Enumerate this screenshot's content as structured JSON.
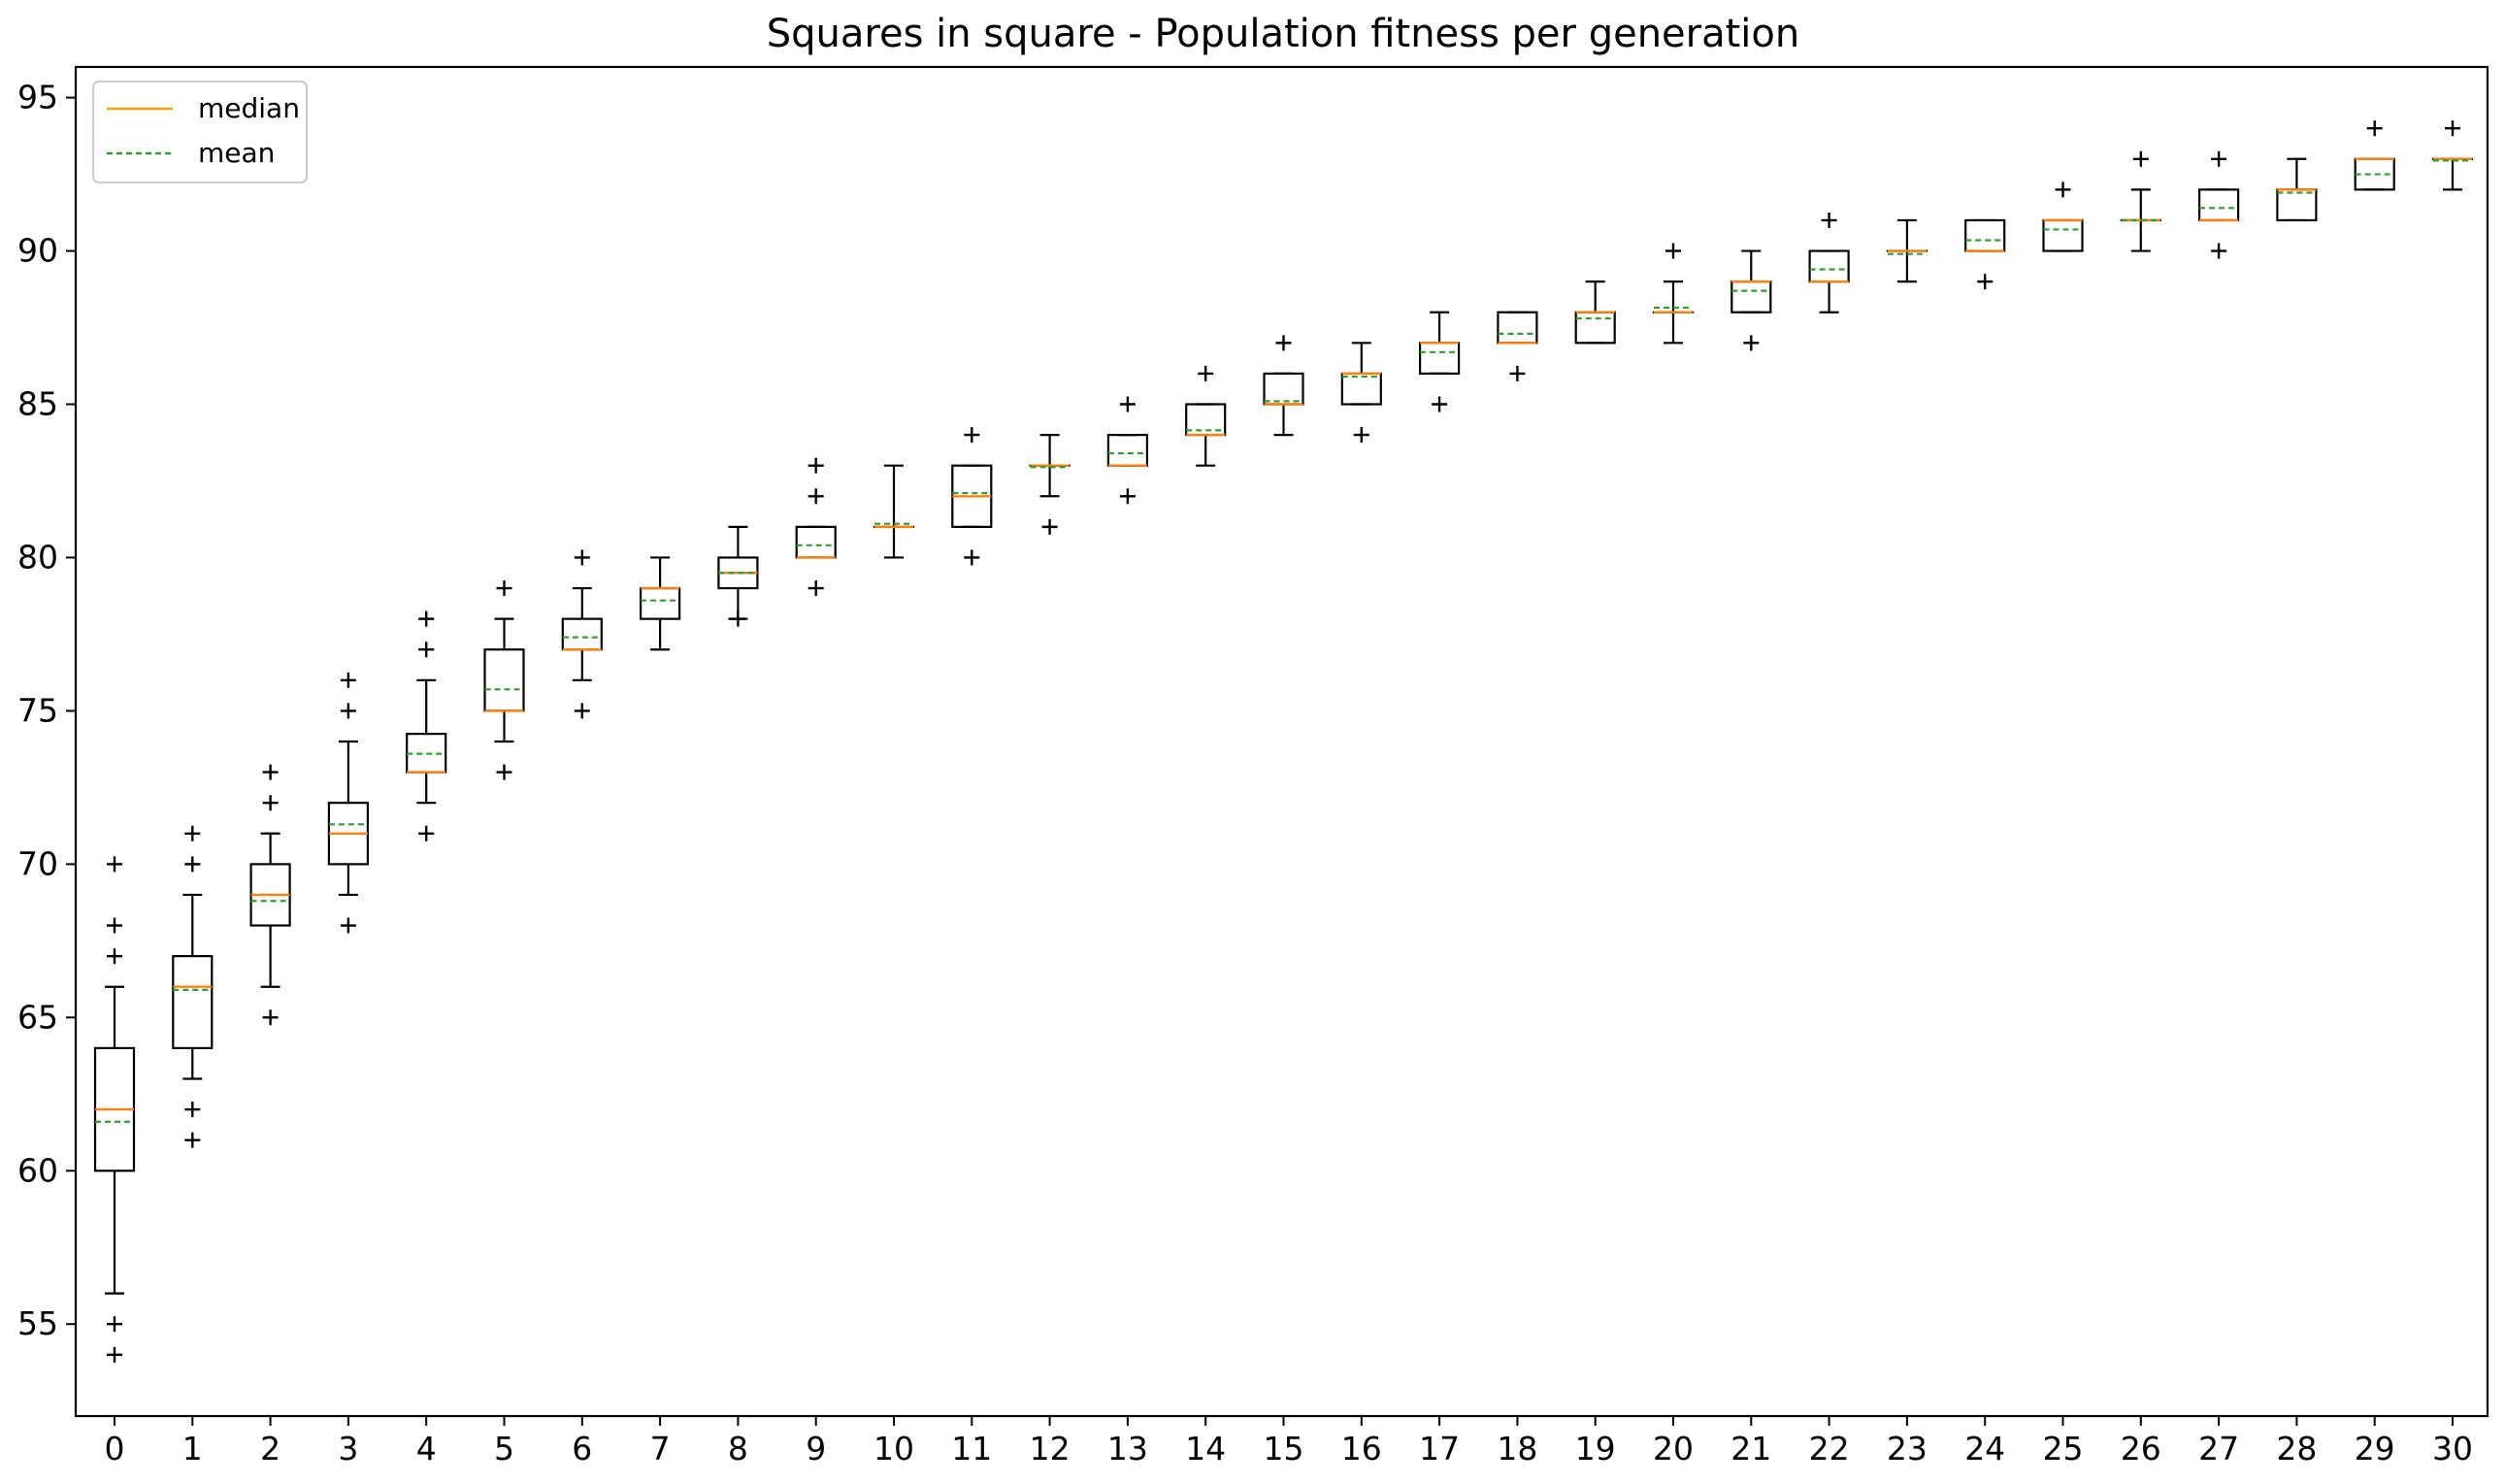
{
  "chart_data": {
    "type": "box",
    "title": "Squares in square - Population fitness per generation",
    "xlabel": "",
    "ylabel": "",
    "ylim": [
      52,
      96
    ],
    "y_ticks": [
      55,
      60,
      65,
      70,
      75,
      80,
      85,
      90,
      95
    ],
    "grid": false,
    "legend": {
      "placement": "top-left",
      "entries": [
        {
          "label": "median",
          "color": "#ff9f0e",
          "style": "solid"
        },
        {
          "label": "mean",
          "color": "#2ca02c",
          "style": "dashed"
        }
      ]
    },
    "colors": {
      "box": "#000000",
      "median": "#ff7f0e",
      "mean": "#2ca02c",
      "outlier": "#000000"
    },
    "outlier_marker": "+",
    "categories": [
      "0",
      "1",
      "2",
      "3",
      "4",
      "5",
      "6",
      "7",
      "8",
      "9",
      "10",
      "11",
      "12",
      "13",
      "14",
      "15",
      "16",
      "17",
      "18",
      "19",
      "20",
      "21",
      "22",
      "23",
      "24",
      "25",
      "26",
      "27",
      "28",
      "29",
      "30"
    ],
    "boxes": [
      {
        "gen": "0",
        "whislo": 56,
        "q1": 60,
        "med": 62,
        "q3": 64,
        "whishi": 66,
        "mean": 61.6,
        "fliers": [
          54,
          55,
          67,
          68,
          70
        ]
      },
      {
        "gen": "1",
        "whislo": 63,
        "q1": 64,
        "med": 66,
        "q3": 67,
        "whishi": 69,
        "mean": 65.9,
        "fliers": [
          61,
          62,
          70,
          71
        ]
      },
      {
        "gen": "2",
        "whislo": 66,
        "q1": 68,
        "med": 69,
        "q3": 70,
        "whishi": 71,
        "mean": 68.8,
        "fliers": [
          65,
          72,
          73
        ]
      },
      {
        "gen": "3",
        "whislo": 69,
        "q1": 70,
        "med": 71,
        "q3": 72,
        "whishi": 74,
        "mean": 71.3,
        "fliers": [
          68,
          75,
          76
        ]
      },
      {
        "gen": "4",
        "whislo": 72,
        "q1": 73,
        "med": 73,
        "q3": 74.25,
        "whishi": 76,
        "mean": 73.6,
        "fliers": [
          71,
          77,
          78
        ]
      },
      {
        "gen": "5",
        "whislo": 74,
        "q1": 75,
        "med": 75,
        "q3": 77,
        "whishi": 78,
        "mean": 75.7,
        "fliers": [
          73,
          79
        ]
      },
      {
        "gen": "6",
        "whislo": 76,
        "q1": 77,
        "med": 77,
        "q3": 78,
        "whishi": 79,
        "mean": 77.4,
        "fliers": [
          75,
          80
        ]
      },
      {
        "gen": "7",
        "whislo": 77,
        "q1": 78,
        "med": 79,
        "q3": 79,
        "whishi": 80,
        "mean": 78.6,
        "fliers": []
      },
      {
        "gen": "8",
        "whislo": 78,
        "q1": 79,
        "med": 79.5,
        "q3": 80,
        "whishi": 81,
        "mean": 79.5,
        "fliers": [
          78
        ]
      },
      {
        "gen": "9",
        "whislo": 80,
        "q1": 80,
        "med": 80,
        "q3": 81,
        "whishi": 81,
        "mean": 80.4,
        "fliers": [
          79,
          82,
          83
        ]
      },
      {
        "gen": "10",
        "whislo": 80,
        "q1": 81,
        "med": 81,
        "q3": 81,
        "whishi": 83,
        "mean": 81.1,
        "fliers": []
      },
      {
        "gen": "11",
        "whislo": 81,
        "q1": 81,
        "med": 82,
        "q3": 83,
        "whishi": 83,
        "mean": 82.1,
        "fliers": [
          80,
          84
        ]
      },
      {
        "gen": "12",
        "whislo": 82,
        "q1": 83,
        "med": 83,
        "q3": 83,
        "whishi": 84,
        "mean": 82.95,
        "fliers": [
          81
        ]
      },
      {
        "gen": "13",
        "whislo": 83,
        "q1": 83,
        "med": 83,
        "q3": 84,
        "whishi": 84,
        "mean": 83.4,
        "fliers": [
          82,
          85
        ]
      },
      {
        "gen": "14",
        "whislo": 83,
        "q1": 84,
        "med": 84,
        "q3": 85,
        "whishi": 85,
        "mean": 84.15,
        "fliers": [
          86
        ]
      },
      {
        "gen": "15",
        "whislo": 84,
        "q1": 85,
        "med": 85,
        "q3": 86,
        "whishi": 86,
        "mean": 85.1,
        "fliers": [
          87
        ]
      },
      {
        "gen": "16",
        "whislo": 85,
        "q1": 85,
        "med": 86,
        "q3": 86,
        "whishi": 87,
        "mean": 85.9,
        "fliers": [
          84
        ]
      },
      {
        "gen": "17",
        "whislo": 86,
        "q1": 86,
        "med": 87,
        "q3": 87,
        "whishi": 88,
        "mean": 86.7,
        "fliers": [
          85
        ]
      },
      {
        "gen": "18",
        "whislo": 87,
        "q1": 87,
        "med": 87,
        "q3": 88,
        "whishi": 88,
        "mean": 87.3,
        "fliers": [
          86
        ]
      },
      {
        "gen": "19",
        "whislo": 87,
        "q1": 87,
        "med": 88,
        "q3": 88,
        "whishi": 89,
        "mean": 87.8,
        "fliers": []
      },
      {
        "gen": "20",
        "whislo": 87,
        "q1": 88,
        "med": 88,
        "q3": 88,
        "whishi": 89,
        "mean": 88.15,
        "fliers": [
          90
        ]
      },
      {
        "gen": "21",
        "whislo": 88,
        "q1": 88,
        "med": 89,
        "q3": 89,
        "whishi": 90,
        "mean": 88.7,
        "fliers": [
          87
        ]
      },
      {
        "gen": "22",
        "whislo": 88,
        "q1": 89,
        "med": 89,
        "q3": 90,
        "whishi": 90,
        "mean": 89.4,
        "fliers": [
          91
        ]
      },
      {
        "gen": "23",
        "whislo": 89,
        "q1": 90,
        "med": 90,
        "q3": 90,
        "whishi": 91,
        "mean": 89.9,
        "fliers": []
      },
      {
        "gen": "24",
        "whislo": 90,
        "q1": 90,
        "med": 90,
        "q3": 91,
        "whishi": 91,
        "mean": 90.35,
        "fliers": [
          89
        ]
      },
      {
        "gen": "25",
        "whislo": 90,
        "q1": 90,
        "med": 91,
        "q3": 91,
        "whishi": 91,
        "mean": 90.7,
        "fliers": [
          92
        ]
      },
      {
        "gen": "26",
        "whislo": 90,
        "q1": 91,
        "med": 91,
        "q3": 91,
        "whishi": 92,
        "mean": 91.0,
        "fliers": [
          93
        ]
      },
      {
        "gen": "27",
        "whislo": 91,
        "q1": 91,
        "med": 91,
        "q3": 92,
        "whishi": 92,
        "mean": 91.4,
        "fliers": [
          90,
          93
        ]
      },
      {
        "gen": "28",
        "whislo": 91,
        "q1": 91,
        "med": 92,
        "q3": 92,
        "whishi": 93,
        "mean": 91.9,
        "fliers": []
      },
      {
        "gen": "29",
        "whislo": 92,
        "q1": 92,
        "med": 93,
        "q3": 93,
        "whishi": 93,
        "mean": 92.5,
        "fliers": [
          94
        ]
      },
      {
        "gen": "30",
        "whislo": 92,
        "q1": 93,
        "med": 93,
        "q3": 93,
        "whishi": 93,
        "mean": 92.95,
        "fliers": [
          94
        ]
      }
    ]
  }
}
